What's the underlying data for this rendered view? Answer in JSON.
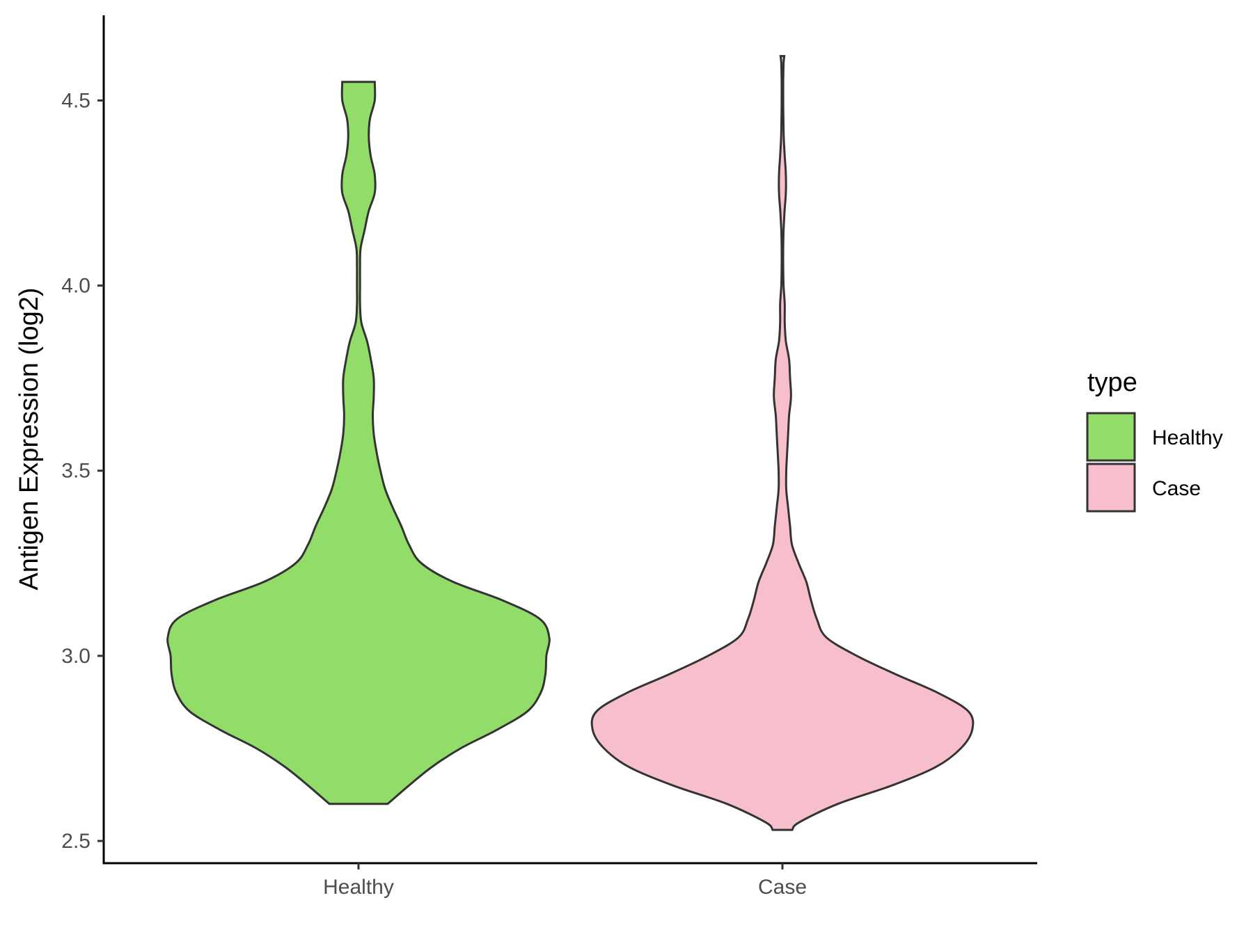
{
  "chart_data": {
    "type": "violin",
    "title": "",
    "xlabel": "",
    "ylabel": "Antigen Expression (log2)",
    "ylim": [
      2.44,
      4.73
    ],
    "yticks": [
      "2.5",
      "3.0",
      "3.5",
      "4.0",
      "4.5"
    ],
    "categories": [
      "Healthy",
      "Case"
    ],
    "legend": {
      "title": "type",
      "position": "right",
      "entries": [
        {
          "label": "Healthy",
          "color": "#92dc6a"
        },
        {
          "label": "Case",
          "color": "#f7bfcb"
        }
      ]
    },
    "series": [
      {
        "name": "Healthy",
        "color": "#92dc6a",
        "min": 2.6,
        "max": 4.55,
        "profile": [
          [
            2.6,
            0.153
          ],
          [
            2.65,
            0.265
          ],
          [
            2.7,
            0.385
          ],
          [
            2.75,
            0.535
          ],
          [
            2.8,
            0.725
          ],
          [
            2.85,
            0.885
          ],
          [
            2.9,
            0.955
          ],
          [
            2.95,
            0.98
          ],
          [
            3.0,
            0.985
          ],
          [
            3.05,
            1.0
          ],
          [
            3.1,
            0.95
          ],
          [
            3.15,
            0.755
          ],
          [
            3.2,
            0.495
          ],
          [
            3.25,
            0.33
          ],
          [
            3.3,
            0.265
          ],
          [
            3.35,
            0.225
          ],
          [
            3.4,
            0.18
          ],
          [
            3.45,
            0.14
          ],
          [
            3.5,
            0.115
          ],
          [
            3.55,
            0.095
          ],
          [
            3.6,
            0.08
          ],
          [
            3.65,
            0.075
          ],
          [
            3.7,
            0.08
          ],
          [
            3.75,
            0.08
          ],
          [
            3.8,
            0.065
          ],
          [
            3.85,
            0.045
          ],
          [
            3.9,
            0.015
          ],
          [
            3.95,
            0.008
          ],
          [
            4.0,
            0.008
          ],
          [
            4.05,
            0.008
          ],
          [
            4.1,
            0.011
          ],
          [
            4.15,
            0.032
          ],
          [
            4.2,
            0.053
          ],
          [
            4.25,
            0.085
          ],
          [
            4.3,
            0.085
          ],
          [
            4.35,
            0.064
          ],
          [
            4.4,
            0.054
          ],
          [
            4.45,
            0.06
          ],
          [
            4.5,
            0.085
          ],
          [
            4.55,
            0.085
          ]
        ]
      },
      {
        "name": "Case",
        "color": "#f7bfcb",
        "min": 2.53,
        "max": 4.62,
        "profile": [
          [
            2.53,
            0.052
          ],
          [
            2.55,
            0.087
          ],
          [
            2.6,
            0.29
          ],
          [
            2.65,
            0.575
          ],
          [
            2.7,
            0.805
          ],
          [
            2.75,
            0.935
          ],
          [
            2.8,
            0.995
          ],
          [
            2.85,
            0.975
          ],
          [
            2.9,
            0.815
          ],
          [
            2.95,
            0.595
          ],
          [
            3.0,
            0.39
          ],
          [
            3.05,
            0.23
          ],
          [
            3.1,
            0.18
          ],
          [
            3.15,
            0.15
          ],
          [
            3.2,
            0.125
          ],
          [
            3.25,
            0.085
          ],
          [
            3.3,
            0.05
          ],
          [
            3.35,
            0.04
          ],
          [
            3.4,
            0.03
          ],
          [
            3.45,
            0.02
          ],
          [
            3.5,
            0.02
          ],
          [
            3.55,
            0.025
          ],
          [
            3.6,
            0.03
          ],
          [
            3.65,
            0.035
          ],
          [
            3.7,
            0.045
          ],
          [
            3.75,
            0.04
          ],
          [
            3.8,
            0.035
          ],
          [
            3.85,
            0.018
          ],
          [
            3.9,
            0.012
          ],
          [
            3.95,
            0.012
          ],
          [
            4.0,
            0.006
          ],
          [
            4.05,
            0.004
          ],
          [
            4.1,
            0.004
          ],
          [
            4.15,
            0.006
          ],
          [
            4.2,
            0.011
          ],
          [
            4.25,
            0.018
          ],
          [
            4.3,
            0.018
          ],
          [
            4.35,
            0.012
          ],
          [
            4.4,
            0.007
          ],
          [
            4.45,
            0.005
          ],
          [
            4.5,
            0.004
          ],
          [
            4.55,
            0.004
          ],
          [
            4.6,
            0.006
          ],
          [
            4.62,
            0.01
          ]
        ]
      }
    ]
  }
}
